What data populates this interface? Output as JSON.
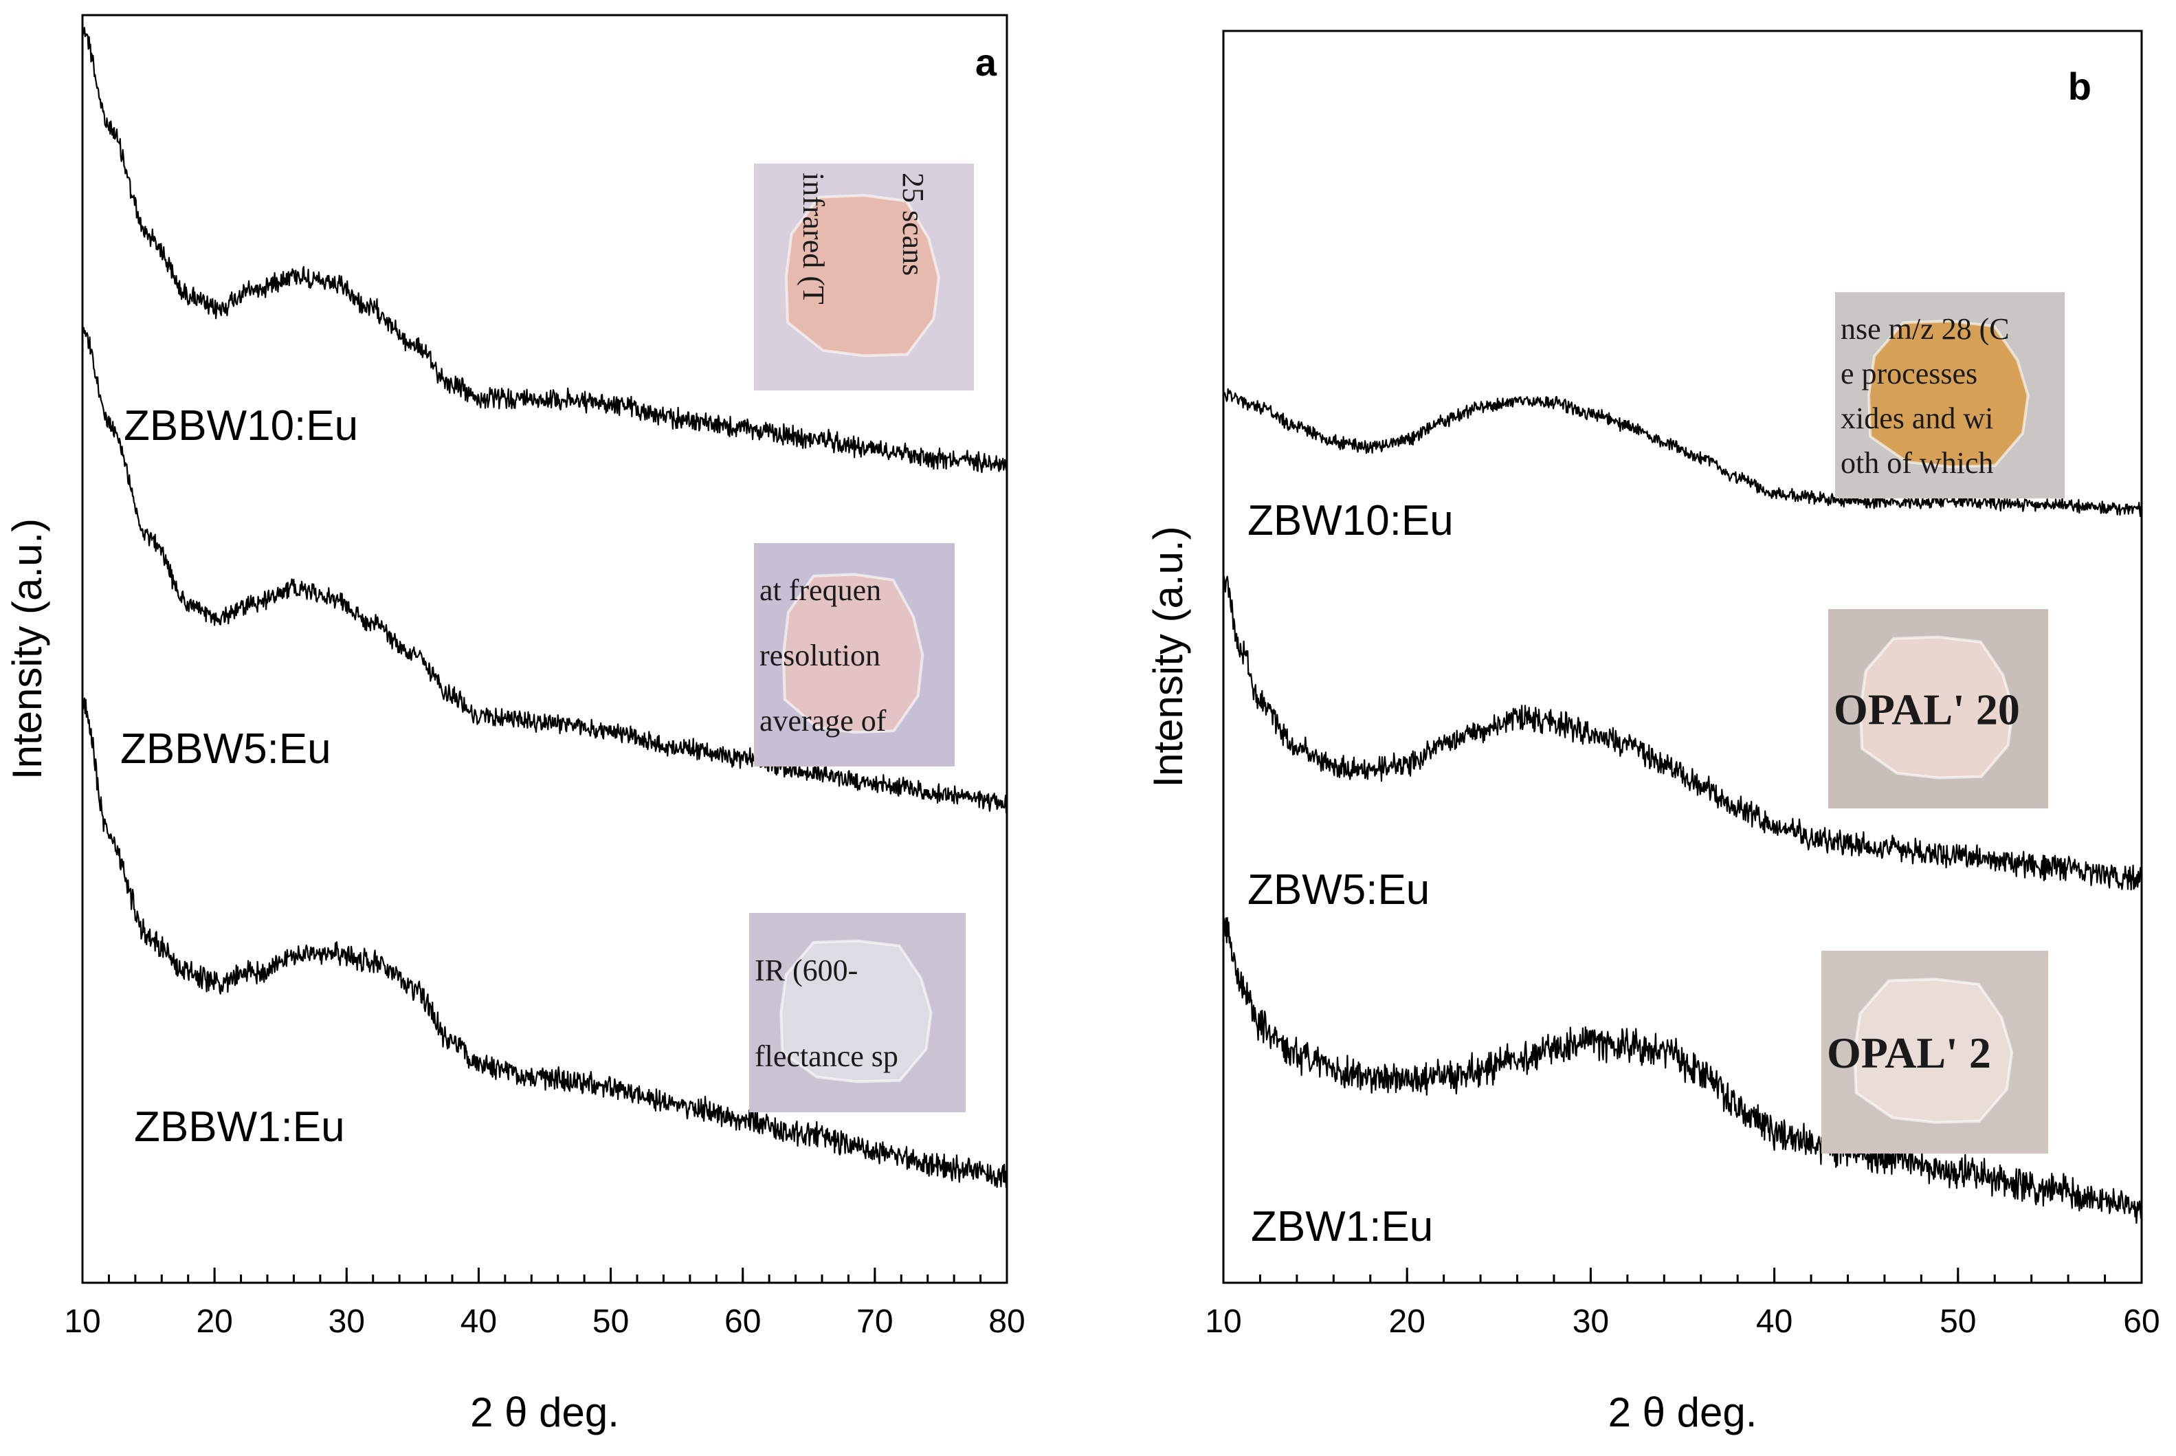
{
  "chart_data": [
    {
      "type": "line",
      "panel": "a",
      "xlabel": "2 θ deg.",
      "ylabel": "Intensity (a.u.)",
      "xlim": [
        10,
        80
      ],
      "xticks": [
        10,
        20,
        30,
        40,
        50,
        60,
        70,
        80
      ],
      "yticks_labeled": false,
      "series": [
        {
          "name": "ZBBW10:Eu",
          "x": [
            10,
            12,
            15,
            18,
            20,
            23,
            26,
            29,
            32,
            35,
            38,
            40,
            45,
            50,
            55,
            60,
            65,
            70,
            75,
            80
          ],
          "values": [
            1.0,
            0.8,
            0.58,
            0.46,
            0.43,
            0.47,
            0.5,
            0.48,
            0.43,
            0.36,
            0.28,
            0.25,
            0.25,
            0.24,
            0.21,
            0.19,
            0.17,
            0.15,
            0.13,
            0.12
          ]
        },
        {
          "name": "ZBBW5:Eu",
          "x": [
            10,
            12,
            15,
            18,
            20,
            23,
            26,
            29,
            32,
            35,
            38,
            40,
            45,
            50,
            55,
            60,
            65,
            70,
            75,
            80
          ],
          "values": [
            1.0,
            0.82,
            0.6,
            0.47,
            0.44,
            0.47,
            0.5,
            0.48,
            0.43,
            0.37,
            0.29,
            0.25,
            0.24,
            0.22,
            0.19,
            0.17,
            0.14,
            0.12,
            0.1,
            0.08
          ]
        },
        {
          "name": "ZBBW1:Eu",
          "x": [
            10,
            12,
            15,
            18,
            20,
            23,
            26,
            29,
            32,
            35,
            38,
            40,
            45,
            50,
            55,
            60,
            65,
            70,
            75,
            80
          ],
          "values": [
            1.0,
            0.74,
            0.55,
            0.48,
            0.46,
            0.48,
            0.51,
            0.52,
            0.5,
            0.45,
            0.35,
            0.3,
            0.28,
            0.26,
            0.23,
            0.2,
            0.17,
            0.14,
            0.11,
            0.09
          ]
        }
      ],
      "insets": [
        {
          "for": "ZBBW10:Eu",
          "text_lines": [
            "25 scans",
            "infrared (T"
          ]
        },
        {
          "for": "ZBBW5:Eu",
          "text_lines": [
            "at frequen",
            "resolution",
            "average of"
          ]
        },
        {
          "for": "ZBBW1:Eu",
          "text_lines": [
            "IR (600-",
            "flectance sp"
          ]
        }
      ]
    },
    {
      "type": "line",
      "panel": "b",
      "xlabel": "2 θ deg.",
      "ylabel": "Intensity (a.u.)",
      "xlim": [
        10,
        60
      ],
      "xticks": [
        10,
        20,
        30,
        40,
        50,
        60
      ],
      "yticks_labeled": false,
      "series": [
        {
          "name": "ZBW10:Eu",
          "x": [
            10,
            12,
            14,
            16,
            18,
            20,
            22,
            24,
            26,
            28,
            30,
            32,
            34,
            36,
            38,
            40,
            43,
            46,
            50,
            55,
            60
          ],
          "values": [
            0.62,
            0.57,
            0.5,
            0.44,
            0.42,
            0.45,
            0.52,
            0.57,
            0.6,
            0.59,
            0.55,
            0.5,
            0.44,
            0.38,
            0.3,
            0.24,
            0.22,
            0.21,
            0.21,
            0.2,
            0.18
          ]
        },
        {
          "name": "ZBW5:Eu",
          "x": [
            10,
            11,
            12,
            14,
            16,
            18,
            20,
            22,
            24,
            26,
            28,
            30,
            32,
            34,
            36,
            38,
            40,
            43,
            46,
            50,
            55,
            60
          ],
          "values": [
            1.0,
            0.8,
            0.66,
            0.54,
            0.49,
            0.48,
            0.5,
            0.55,
            0.59,
            0.62,
            0.61,
            0.58,
            0.55,
            0.5,
            0.44,
            0.38,
            0.33,
            0.29,
            0.27,
            0.25,
            0.22,
            0.19
          ]
        },
        {
          "name": "ZBW1:Eu",
          "x": [
            10,
            11,
            12,
            14,
            16,
            18,
            20,
            22,
            24,
            26,
            28,
            30,
            32,
            34,
            36,
            38,
            40,
            43,
            46,
            50,
            55,
            60
          ],
          "values": [
            1.0,
            0.82,
            0.7,
            0.62,
            0.58,
            0.56,
            0.55,
            0.56,
            0.58,
            0.61,
            0.64,
            0.66,
            0.65,
            0.63,
            0.58,
            0.48,
            0.4,
            0.36,
            0.33,
            0.29,
            0.24,
            0.19
          ]
        }
      ],
      "insets": [
        {
          "for": "ZBW10:Eu",
          "text_lines": [
            "nse m/z 28 (C",
            "e processes",
            "xides and wi",
            "oth of which"
          ]
        },
        {
          "for": "ZBW5:Eu",
          "text_lines": [
            "OPAL' 20"
          ]
        },
        {
          "for": "ZBW1:Eu",
          "text_lines": [
            "OPAL' 2"
          ]
        }
      ]
    }
  ]
}
